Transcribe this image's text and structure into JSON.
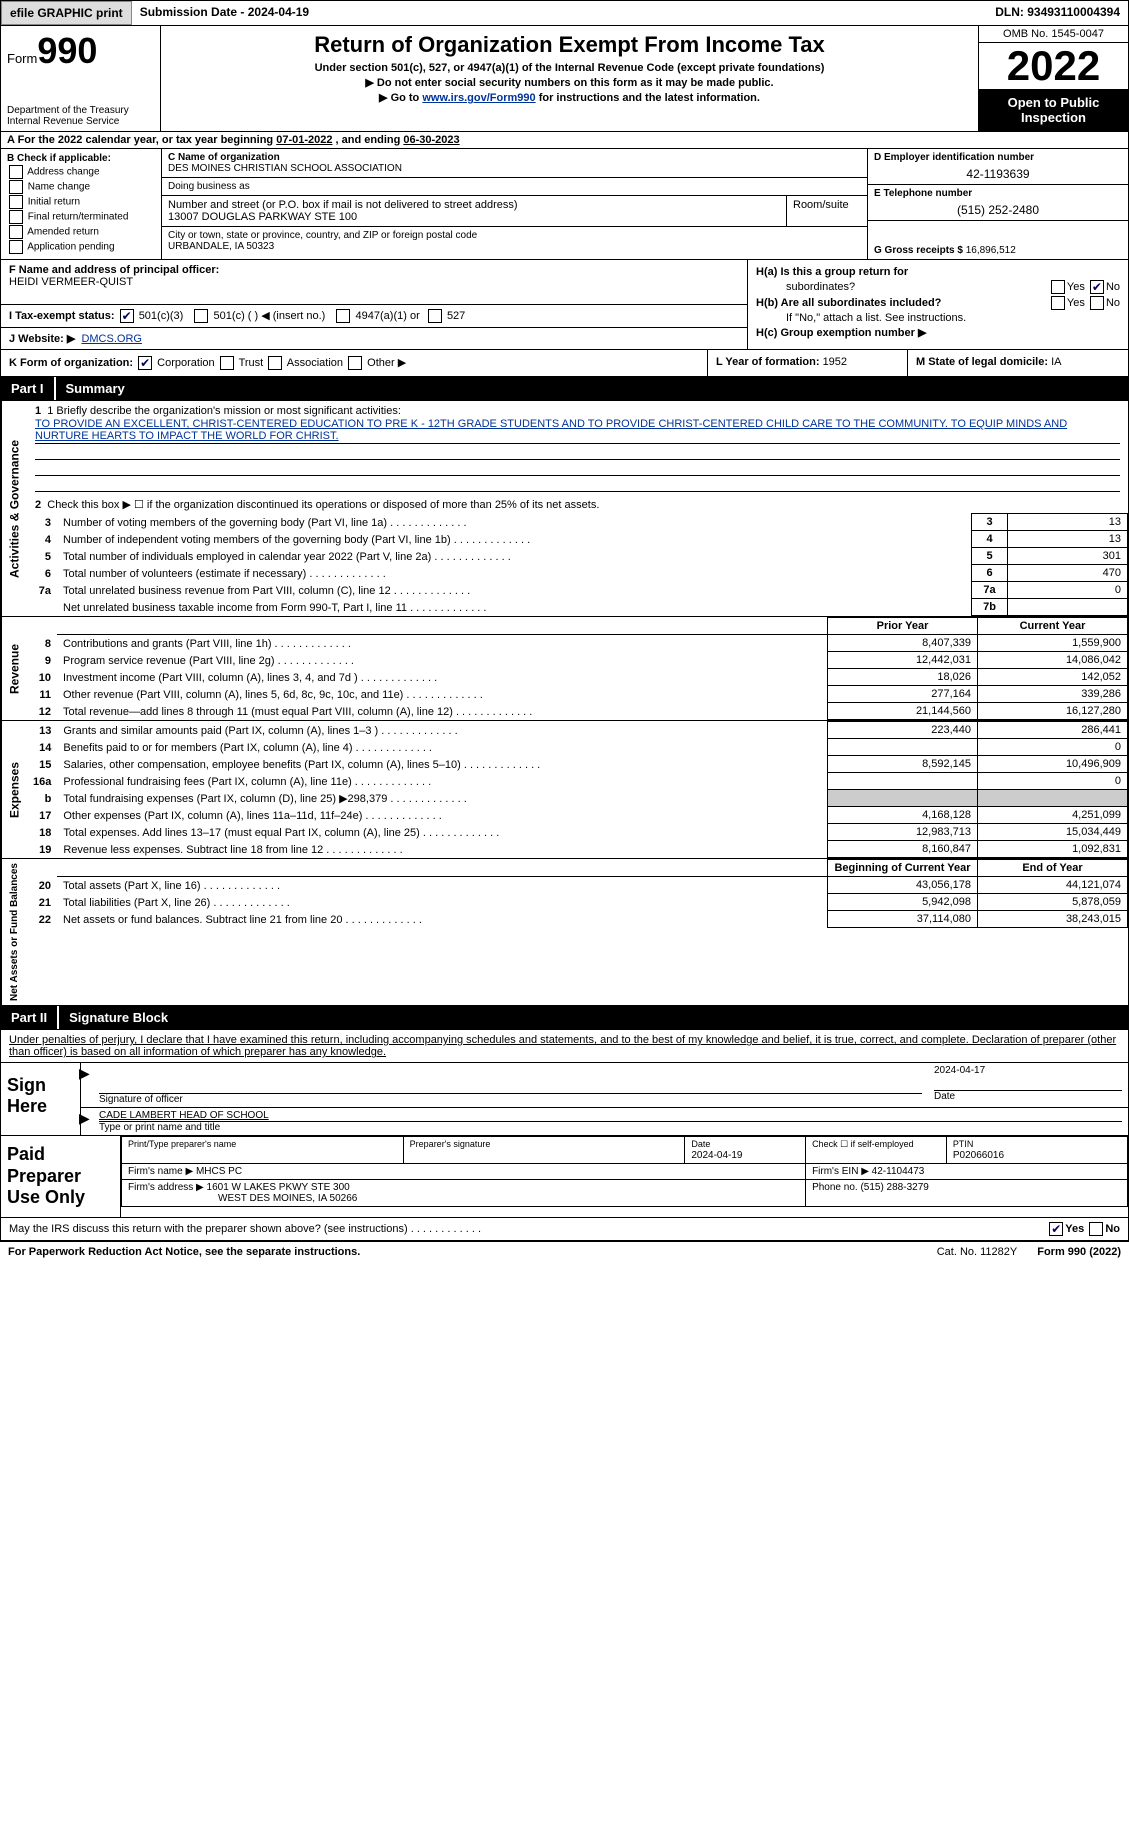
{
  "topbar": {
    "efile_btn": "efile GRAPHIC print",
    "sub_date_lbl": "Submission Date - ",
    "sub_date": "2024-04-19",
    "dln_lbl": "DLN: ",
    "dln": "93493110004394"
  },
  "header": {
    "form_word": "Form",
    "form_num": "990",
    "dept": "Department of the Treasury\nInternal Revenue Service",
    "title": "Return of Organization Exempt From Income Tax",
    "sub1": "Under section 501(c), 527, or 4947(a)(1) of the Internal Revenue Code (except private foundations)",
    "sub2": "Do not enter social security numbers on this form as it may be made public.",
    "sub3_pre": "Go to ",
    "sub3_link": "www.irs.gov/Form990",
    "sub3_post": " for instructions and the latest information.",
    "omb": "OMB No. 1545-0047",
    "year": "2022",
    "open": "Open to Public Inspection"
  },
  "rowA": {
    "pre": "A For the 2022 calendar year, or tax year beginning ",
    "begin": "07-01-2022",
    "mid": " , and ending ",
    "end": "06-30-2023"
  },
  "colB": {
    "hdr": "B Check if applicable:",
    "opts": [
      "Address change",
      "Name change",
      "Initial return",
      "Final return/terminated",
      "Amended return",
      "Application pending"
    ]
  },
  "colC": {
    "name_lbl": "C Name of organization",
    "name": "DES MOINES CHRISTIAN SCHOOL ASSOCIATION",
    "dba_lbl": "Doing business as",
    "dba": "",
    "street_lbl": "Number and street (or P.O. box if mail is not delivered to street address)",
    "street": "13007 DOUGLAS PARKWAY STE 100",
    "room_lbl": "Room/suite",
    "room": "",
    "city_lbl": "City or town, state or province, country, and ZIP or foreign postal code",
    "city": "URBANDALE, IA  50323"
  },
  "colD": {
    "ein_lbl": "D Employer identification number",
    "ein": "42-1193639",
    "phone_lbl": "E Telephone number",
    "phone": "(515) 252-2480",
    "gross_lbl": "G Gross receipts $ ",
    "gross": "16,896,512"
  },
  "rowF": {
    "f_lbl": "F Name and address of principal officer:",
    "f_name": "HEIDI VERMEER-QUIST",
    "i_lbl": "I Tax-exempt status:",
    "i_501c3": "501(c)(3)",
    "i_501c": "501(c) (  ) ◀ (insert no.)",
    "i_4947": "4947(a)(1) or",
    "i_527": "527",
    "j_lbl": "J Website: ▶",
    "j_val": "DMCS.ORG"
  },
  "rowH": {
    "ha1": "H(a) Is this a group return for",
    "ha2": "subordinates?",
    "hb1": "H(b) Are all subordinates included?",
    "hb2": "If \"No,\" attach a list. See instructions.",
    "hc": "H(c) Group exemption number ▶",
    "yes": "Yes",
    "no": "No"
  },
  "rowK": {
    "k_lbl": "K Form of organization:",
    "k_corp": "Corporation",
    "k_trust": "Trust",
    "k_assoc": "Association",
    "k_other": "Other ▶",
    "l_lbl": "L Year of formation: ",
    "l_val": "1952",
    "m_lbl": "M State of legal domicile: ",
    "m_val": "IA"
  },
  "part1": {
    "num": "Part I",
    "title": "Summary"
  },
  "summary": {
    "vlabels": {
      "gov": "Activities & Governance",
      "rev": "Revenue",
      "exp": "Expenses",
      "net": "Net Assets or Fund Balances"
    },
    "line1_lbl": "1  Briefly describe the organization's mission or most significant activities:",
    "line1_txt": "TO PROVIDE AN EXCELLENT, CHRIST-CENTERED EDUCATION TO PRE K - 12TH GRADE STUDENTS AND TO PROVIDE CHRIST-CENTERED CHILD CARE TO THE COMMUNITY. TO EQUIP MINDS AND NURTURE HEARTS TO IMPACT THE WORLD FOR CHRIST.",
    "line2": "Check this box ▶ ☐ if the organization discontinued its operations or disposed of more than 25% of its net assets.",
    "rows_gov": [
      {
        "n": "3",
        "d": "Number of voting members of the governing body (Part VI, line 1a)",
        "box": "3",
        "v": "13"
      },
      {
        "n": "4",
        "d": "Number of independent voting members of the governing body (Part VI, line 1b)",
        "box": "4",
        "v": "13"
      },
      {
        "n": "5",
        "d": "Total number of individuals employed in calendar year 2022 (Part V, line 2a)",
        "box": "5",
        "v": "301"
      },
      {
        "n": "6",
        "d": "Total number of volunteers (estimate if necessary)",
        "box": "6",
        "v": "470"
      },
      {
        "n": "7a",
        "d": "Total unrelated business revenue from Part VIII, column (C), line 12",
        "box": "7a",
        "v": "0"
      },
      {
        "n": "",
        "d": "Net unrelated business taxable income from Form 990-T, Part I, line 11",
        "box": "7b",
        "v": ""
      }
    ],
    "col_hdr_prior": "Prior Year",
    "col_hdr_curr": "Current Year",
    "rows_rev": [
      {
        "n": "8",
        "d": "Contributions and grants (Part VIII, line 1h)",
        "p": "8,407,339",
        "c": "1,559,900"
      },
      {
        "n": "9",
        "d": "Program service revenue (Part VIII, line 2g)",
        "p": "12,442,031",
        "c": "14,086,042"
      },
      {
        "n": "10",
        "d": "Investment income (Part VIII, column (A), lines 3, 4, and 7d )",
        "p": "18,026",
        "c": "142,052"
      },
      {
        "n": "11",
        "d": "Other revenue (Part VIII, column (A), lines 5, 6d, 8c, 9c, 10c, and 11e)",
        "p": "277,164",
        "c": "339,286"
      },
      {
        "n": "12",
        "d": "Total revenue—add lines 8 through 11 (must equal Part VIII, column (A), line 12)",
        "p": "21,144,560",
        "c": "16,127,280"
      }
    ],
    "rows_exp": [
      {
        "n": "13",
        "d": "Grants and similar amounts paid (Part IX, column (A), lines 1–3 )",
        "p": "223,440",
        "c": "286,441"
      },
      {
        "n": "14",
        "d": "Benefits paid to or for members (Part IX, column (A), line 4)",
        "p": "",
        "c": "0"
      },
      {
        "n": "15",
        "d": "Salaries, other compensation, employee benefits (Part IX, column (A), lines 5–10)",
        "p": "8,592,145",
        "c": "10,496,909"
      },
      {
        "n": "16a",
        "d": "Professional fundraising fees (Part IX, column (A), line 11e)",
        "p": "",
        "c": "0"
      },
      {
        "n": "b",
        "d": "Total fundraising expenses (Part IX, column (D), line 25) ▶298,379",
        "p": "shade",
        "c": "shade"
      },
      {
        "n": "17",
        "d": "Other expenses (Part IX, column (A), lines 11a–11d, 11f–24e)",
        "p": "4,168,128",
        "c": "4,251,099"
      },
      {
        "n": "18",
        "d": "Total expenses. Add lines 13–17 (must equal Part IX, column (A), line 25)",
        "p": "12,983,713",
        "c": "15,034,449"
      },
      {
        "n": "19",
        "d": "Revenue less expenses. Subtract line 18 from line 12",
        "p": "8,160,847",
        "c": "1,092,831"
      }
    ],
    "col_hdr_beg": "Beginning of Current Year",
    "col_hdr_end": "End of Year",
    "rows_net": [
      {
        "n": "20",
        "d": "Total assets (Part X, line 16)",
        "p": "43,056,178",
        "c": "44,121,074"
      },
      {
        "n": "21",
        "d": "Total liabilities (Part X, line 26)",
        "p": "5,942,098",
        "c": "5,878,059"
      },
      {
        "n": "22",
        "d": "Net assets or fund balances. Subtract line 21 from line 20",
        "p": "37,114,080",
        "c": "38,243,015"
      }
    ]
  },
  "part2": {
    "num": "Part II",
    "title": "Signature Block"
  },
  "sig": {
    "intro": "Under penalties of perjury, I declare that I have examined this return, including accompanying schedules and statements, and to the best of my knowledge and belief, it is true, correct, and complete. Declaration of preparer (other than officer) is based on all information of which preparer has any knowledge.",
    "sign_here": "Sign Here",
    "sig_officer": "Signature of officer",
    "sig_date": "2024-04-17",
    "date_lbl": "Date",
    "name_title": "CADE LAMBERT HEAD OF SCHOOL",
    "name_lbl": "Type or print name and title"
  },
  "prep": {
    "lbl": "Paid Preparer Use Only",
    "h_name": "Print/Type preparer's name",
    "h_sig": "Preparer's signature",
    "h_date_lbl": "Date",
    "h_date": "2024-04-19",
    "h_check": "Check ☐ if self-employed",
    "h_ptin_lbl": "PTIN",
    "h_ptin": "P02066016",
    "firm_name_lbl": "Firm's name    ▶ ",
    "firm_name": "MHCS PC",
    "firm_ein_lbl": "Firm's EIN ▶ ",
    "firm_ein": "42-1104473",
    "firm_addr_lbl": "Firm's address ▶ ",
    "firm_addr1": "1601 W LAKES PKWY STE 300",
    "firm_addr2": "WEST DES MOINES, IA  50266",
    "firm_phone_lbl": "Phone no. ",
    "firm_phone": "(515) 288-3279"
  },
  "footer": {
    "q": "May the IRS discuss this return with the preparer shown above? (see instructions)",
    "yes": "Yes",
    "no": "No",
    "paperwork": "For Paperwork Reduction Act Notice, see the separate instructions.",
    "cat": "Cat. No. 11282Y",
    "form": "Form 990 (2022)"
  }
}
